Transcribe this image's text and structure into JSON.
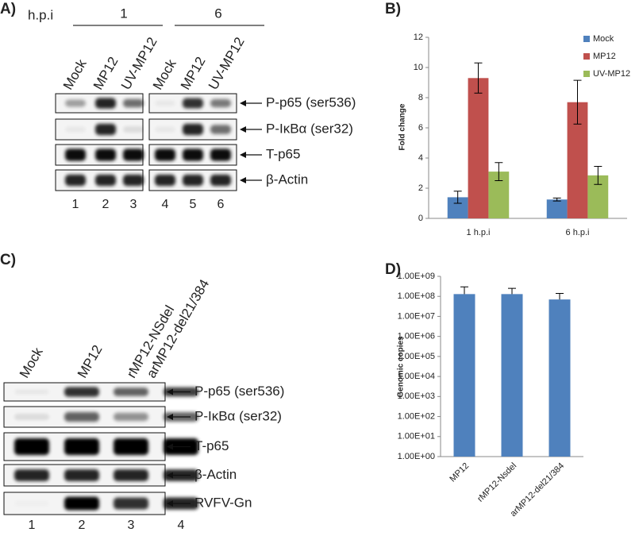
{
  "blots": [
    {
      "label": "A)",
      "time_label": "h.p.i",
      "groups": [
        "1",
        "6"
      ],
      "lanes": [
        "Mock",
        "MP12",
        "UV-MP12",
        "Mock",
        "MP12",
        "UV-MP12"
      ],
      "rows": [
        "P-p65 (ser536)",
        "P-IκBα (ser32)",
        "T-p65",
        "β-Actin"
      ],
      "lane_numbers": [
        "1",
        "2",
        "3",
        "4",
        "5",
        "6"
      ]
    },
    {
      "label": "C)",
      "lanes": [
        "Mock",
        "MP12",
        "rMP12-NSdel",
        "arMP12-del21/384"
      ],
      "rows": [
        "P-p65 (ser536)",
        "P-IκBα (ser32)",
        "T-p65",
        "β-Actin",
        "RVFV-Gn"
      ],
      "lane_numbers": [
        "1",
        "2",
        "3",
        "4"
      ]
    }
  ],
  "chart_data": [
    {
      "type": "bar",
      "label": "B)",
      "y_label": "Fold change",
      "categories": [
        "1 h.p.i",
        "6 h.p.i"
      ],
      "series": [
        {
          "name": "Mock",
          "color": "#4f81bd",
          "values": [
            1.4,
            1.25
          ],
          "errors": [
            0.4,
            0.1
          ]
        },
        {
          "name": "MP12",
          "color": "#c0504d",
          "values": [
            9.3,
            7.7
          ],
          "errors": [
            1.0,
            1.45
          ]
        },
        {
          "name": "UV-MP12",
          "color": "#9bbb59",
          "values": [
            3.1,
            2.85
          ],
          "errors": [
            0.6,
            0.6
          ]
        }
      ],
      "ylim": [
        0,
        12
      ],
      "yticks": [
        0,
        2,
        4,
        6,
        8,
        10,
        12
      ],
      "legend": "top-right"
    },
    {
      "type": "bar",
      "label": "D)",
      "y_label": "Genomic copies",
      "log_y": true,
      "categories": [
        "MP12",
        "rMP12-Nsdel",
        "arMP12-del21/384"
      ],
      "series": [
        {
          "name": "Genomic copies",
          "color": "#4f81bd",
          "values": [
            130000000,
            130000000,
            70000000
          ],
          "errors": [
            170000000,
            120000000,
            70000000
          ]
        }
      ],
      "ylim": [
        1,
        1000000000
      ],
      "yticks": [
        {
          "value": 1,
          "label": "1.00E+00"
        },
        {
          "value": 10,
          "label": "1.00E+01"
        },
        {
          "value": 100,
          "label": "1.00E+02"
        },
        {
          "value": 1000,
          "label": "1.00E+03"
        },
        {
          "value": 10000,
          "label": "1.00E+04"
        },
        {
          "value": 100000,
          "label": "1.00E+05"
        },
        {
          "value": 1000000,
          "label": "1.00E+06"
        },
        {
          "value": 10000000,
          "label": "1.00E+07"
        },
        {
          "value": 100000000,
          "label": "1.00E+08"
        },
        {
          "value": 1000000000,
          "label": "1.00E+09"
        }
      ]
    }
  ]
}
